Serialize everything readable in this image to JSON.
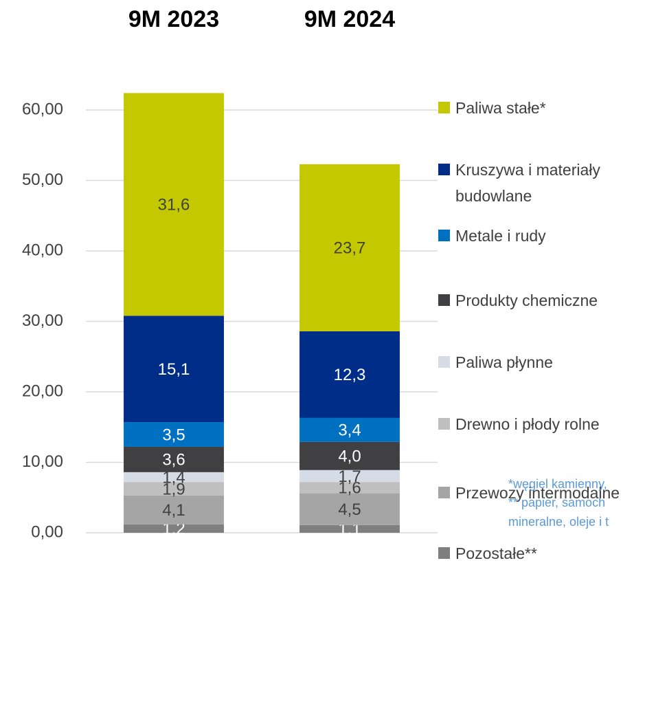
{
  "chart_data": {
    "type": "stacked_bar",
    "categories": [
      "9M 2023",
      "9M 2024"
    ],
    "series": [
      {
        "name": "Pozostałe**",
        "color": "#7f7f7f",
        "values": [
          1.2,
          1.1
        ],
        "value_labels": [
          "1,2",
          "1,1"
        ]
      },
      {
        "name": "Przewozy intermodalne",
        "color": "#a5a5a5",
        "values": [
          4.1,
          4.5
        ],
        "value_labels": [
          "4,1",
          "4,5"
        ]
      },
      {
        "name": "Drewno i płody rolne",
        "color": "#bfbfbf",
        "values": [
          1.9,
          1.6
        ],
        "value_labels": [
          "1,9",
          "1,6"
        ]
      },
      {
        "name": "Paliwa płynne",
        "color": "#d6dce5",
        "values": [
          1.4,
          1.7
        ],
        "value_labels": [
          "1,4",
          "1,7"
        ]
      },
      {
        "name": "Produkty chemiczne",
        "color": "#404043",
        "values": [
          3.6,
          4.0
        ],
        "value_labels": [
          "3,6",
          "4,0"
        ]
      },
      {
        "name": "Metale i rudy",
        "color": "#0070c0",
        "values": [
          3.5,
          3.4
        ],
        "value_labels": [
          "3,5",
          "3,4"
        ]
      },
      {
        "name": "Kruszywa i materiały budowlane",
        "color": "#002d87",
        "values": [
          15.1,
          12.3
        ],
        "value_labels": [
          "15,1",
          "12,3"
        ]
      },
      {
        "name": "Paliwa stałe*",
        "color": "#c4c800",
        "values": [
          31.6,
          23.7
        ],
        "value_labels": [
          "31,6",
          "23,7"
        ]
      }
    ],
    "ylim": [
      0,
      65
    ],
    "yticks": [
      {
        "value": 0,
        "label": "0,00"
      },
      {
        "value": 10,
        "label": "10,00"
      },
      {
        "value": 20,
        "label": "20,00"
      },
      {
        "value": 30,
        "label": "30,00"
      },
      {
        "value": 40,
        "label": "40,00"
      },
      {
        "value": 50,
        "label": "50,00"
      },
      {
        "value": 60,
        "label": "60,00"
      }
    ],
    "grid": true,
    "legend": "right",
    "notes": [
      "*węgiel kamienny,",
      "** papier, samoch",
      "mineralne, oleje i t"
    ]
  }
}
